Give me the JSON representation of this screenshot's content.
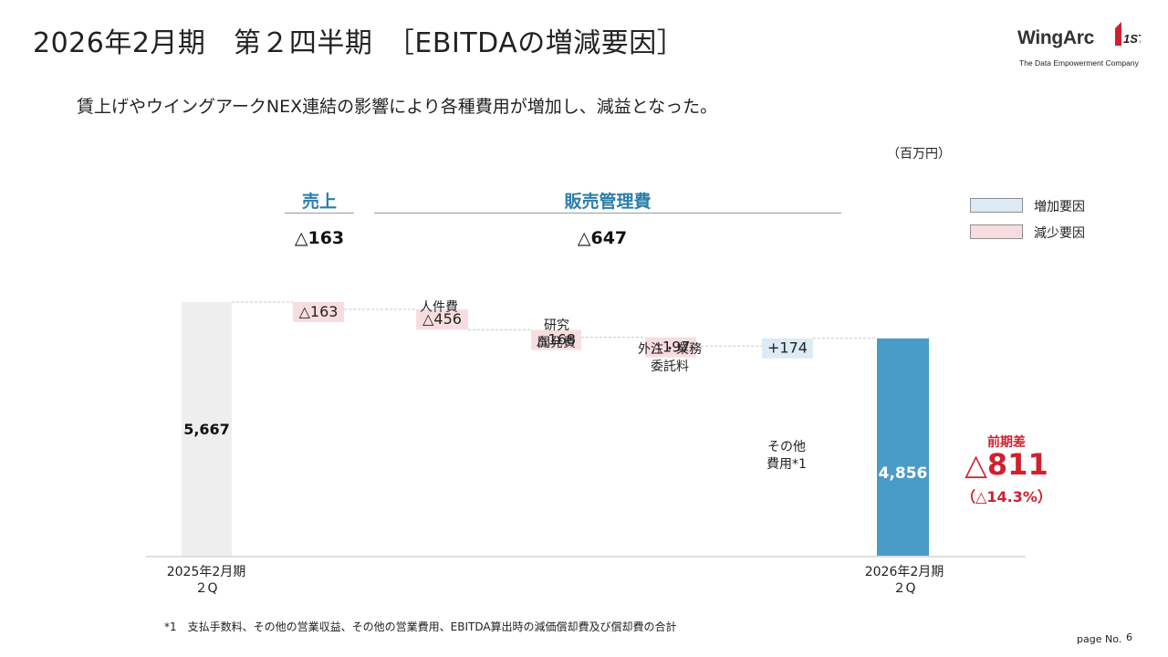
{
  "header": {
    "title": "2026年2月期　第２四半期　［EBITDAの増減要因］",
    "logo_name": "WingArc",
    "logo_mark": "1ST",
    "logo_tagline": "The Data Empowerment Company"
  },
  "subtitle": "賃上げやウイングアークNEX連結の影響により各種費用が増加し、減益となった。",
  "unit_label": "（百万円）",
  "categories": {
    "sales": {
      "label": "売上",
      "value": "△163"
    },
    "sga": {
      "label": "販売管理費",
      "value": "△647"
    }
  },
  "legend": {
    "increase": {
      "label": "増加要因",
      "color": "#dcebf6"
    },
    "decrease": {
      "label": "減少要因",
      "color": "#f8dde0"
    }
  },
  "chart_data": {
    "type": "waterfall",
    "ylim": [
      0,
      6000
    ],
    "start": {
      "label": "2025年2月期",
      "sublabel": "２Q",
      "value": 5667,
      "display": "5,667",
      "color": "#eeeeee"
    },
    "steps": [
      {
        "name": "売上",
        "label_lines": [],
        "delta": -163,
        "display": "△163"
      },
      {
        "name": "人件費",
        "label_lines": [
          "人件費"
        ],
        "delta": -456,
        "display": "△456"
      },
      {
        "name": "研究開発費",
        "label_lines": [
          "研究",
          "開発費"
        ],
        "delta": -168,
        "display": "△168"
      },
      {
        "name": "外注・業務委託料",
        "label_lines": [
          "外注・業務",
          "委託料"
        ],
        "delta": -197,
        "display": "△197"
      },
      {
        "name": "その他費用",
        "label_lines": [
          "その他",
          "費用*1"
        ],
        "delta": 174,
        "display": "+174"
      }
    ],
    "end": {
      "label": "2026年2月期",
      "sublabel": "２Q",
      "value": 4856,
      "display": "4,856",
      "color": "#4a9cc8"
    },
    "difference": {
      "heading": "前期差",
      "value": "△811",
      "percent": "（△14.3%）"
    },
    "colors": {
      "increase": "#dcebf6",
      "decrease": "#f8dde0",
      "connector": "#c8c8c8",
      "axis": "#cccccc"
    }
  },
  "footnote": "*1　支払手数料、その他の営業収益、その他の営業費用、EBITDA算出時の減価償却費及び償却費の合計",
  "page": {
    "label": "page No.",
    "number": "6"
  }
}
